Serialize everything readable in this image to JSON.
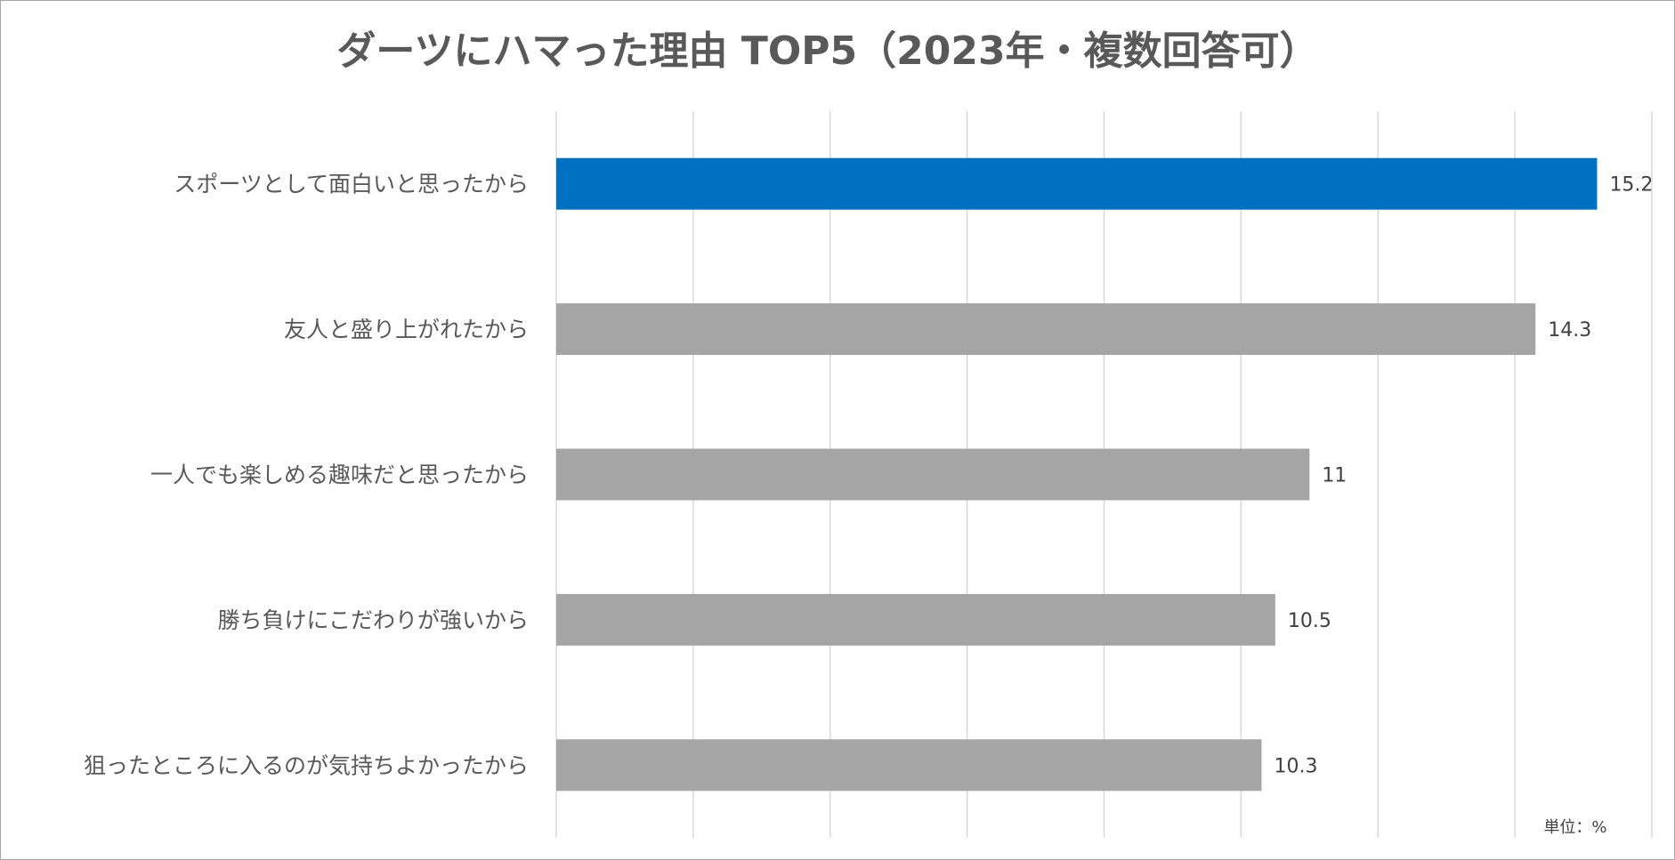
{
  "chart_data": {
    "type": "bar",
    "orientation": "horizontal",
    "title": "ダーツにハマった理由 TOP5（2023年・複数回答可）",
    "categories": [
      "スポーツとして面白いと思ったから",
      "友人と盛り上がれたから",
      "一人でも楽しめる趣味だと思ったから",
      "勝ち負けにこだわりが強いから",
      "狙ったところに入るのが気持ちよかったから"
    ],
    "values": [
      15.2,
      14.3,
      11,
      10.5,
      10.3
    ],
    "data_labels": [
      "15.2",
      "14.3",
      "11",
      "10.5",
      "10.3"
    ],
    "xlim": [
      0,
      16
    ],
    "grid": true,
    "grid_step": 2,
    "x_tick_labels_shown": false,
    "unit_note": "単位：%",
    "colors": {
      "highlight": "#0070C0",
      "default": "#A5A5A5",
      "grid": "#D9D9D9"
    }
  }
}
